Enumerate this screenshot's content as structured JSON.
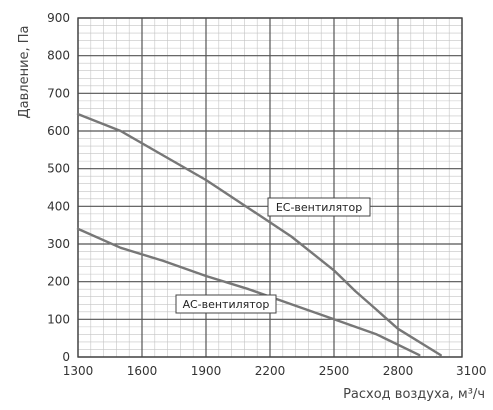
{
  "chart_data": {
    "type": "line",
    "xlabel": "Расход воздуха, м³/ч",
    "ylabel": "Давление, Па",
    "xlim": [
      1300,
      3100
    ],
    "ylim": [
      0,
      900
    ],
    "x_ticks": [
      1300,
      1600,
      1900,
      2200,
      2500,
      2800,
      3100
    ],
    "y_ticks": [
      0,
      100,
      200,
      300,
      400,
      500,
      600,
      700,
      800,
      900
    ],
    "grid": true,
    "series": [
      {
        "name": "EC-вентилятор",
        "color": "#777777",
        "points": [
          [
            1300,
            645
          ],
          [
            1500,
            600
          ],
          [
            1700,
            535
          ],
          [
            1900,
            470
          ],
          [
            2100,
            395
          ],
          [
            2300,
            320
          ],
          [
            2500,
            230
          ],
          [
            2600,
            175
          ],
          [
            2700,
            125
          ],
          [
            2800,
            75
          ],
          [
            3000,
            5
          ]
        ]
      },
      {
        "name": "AC-вентилятор",
        "color": "#777777",
        "points": [
          [
            1300,
            340
          ],
          [
            1500,
            290
          ],
          [
            1700,
            255
          ],
          [
            1900,
            215
          ],
          [
            2100,
            180
          ],
          [
            2300,
            140
          ],
          [
            2500,
            100
          ],
          [
            2700,
            60
          ],
          [
            2900,
            5
          ]
        ]
      }
    ],
    "annotations": [
      {
        "text": "EC-вентилятор",
        "series": "EC-вентилятор"
      },
      {
        "text": "AC-вентилятор",
        "series": "AC-вентилятор"
      }
    ]
  }
}
